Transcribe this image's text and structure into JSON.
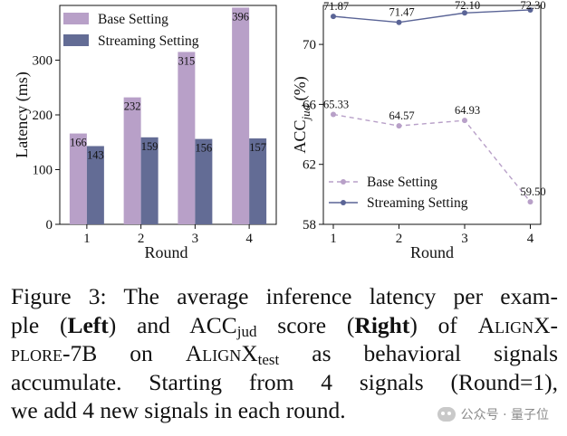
{
  "chart_data": [
    {
      "type": "bar",
      "ylabel": "Latency (ms)",
      "xlabel": "Round",
      "categories": [
        "1",
        "2",
        "3",
        "4"
      ],
      "ylim": [
        0,
        400
      ],
      "yticks": [
        "0",
        "100",
        "200",
        "300"
      ],
      "series": [
        {
          "name": "Base Setting",
          "color": "#b8a0c8",
          "values": [
            166,
            232,
            315,
            396
          ]
        },
        {
          "name": "Streaming Setting",
          "color": "#636c95",
          "values": [
            143,
            159,
            156,
            157
          ]
        }
      ],
      "legend": "top-left",
      "grid": false
    },
    {
      "type": "line",
      "ylabel_main": "ACC",
      "ylabel_sub": "jud",
      "ylabel_suffix": " (%)",
      "xlabel": "Round",
      "x": [
        "1",
        "2",
        "3",
        "4"
      ],
      "ylim": [
        58,
        72.6
      ],
      "yticks": [
        "58",
        "62",
        "66",
        "70"
      ],
      "series": [
        {
          "name": "Base Setting",
          "color": "#b8a0c8",
          "dashed": true,
          "values": [
            65.33,
            64.57,
            64.93,
            59.5
          ],
          "labels": [
            "65.33",
            "64.57",
            "64.93",
            "59.50"
          ]
        },
        {
          "name": "Streaming Setting",
          "color": "#5a6496",
          "dashed": false,
          "values": [
            71.87,
            71.47,
            72.1,
            72.3
          ],
          "labels": [
            "71.87",
            "71.47",
            "72.10",
            "72.30"
          ]
        }
      ],
      "legend": "bottom-left",
      "grid": false
    }
  ],
  "caption": {
    "figure_label": "Figure 3:",
    "t1": "The average inference latency per exam-",
    "t2a": "ple (",
    "left": "Left",
    "t2b": ") and ACC",
    "jud": "jud",
    "t2c": " score (",
    "right": "Right",
    "t2d": ") of ",
    "alignx1": "AlignX-",
    "t3a": "plore-7B",
    "t3b": " on ",
    "alignx2": "AlignX",
    "test": "test",
    "t3c": " as behavioral signals",
    "t4": "accumulate.  Starting from 4 signals (Round=1),",
    "t5": "we add 4 new signals in each round."
  },
  "watermark": {
    "text": "公众号 · 量子位",
    "icon": "wechat-icon"
  }
}
